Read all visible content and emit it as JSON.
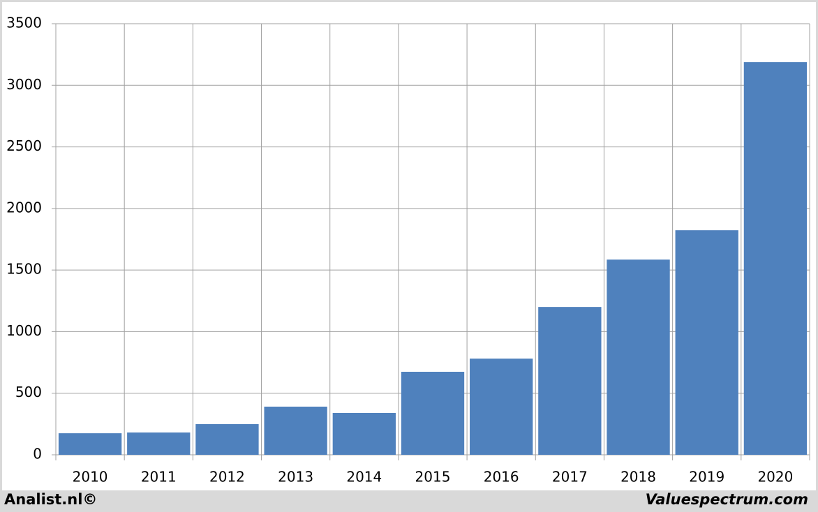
{
  "chart_data": {
    "type": "bar",
    "categories": [
      "2010",
      "2011",
      "2012",
      "2013",
      "2014",
      "2015",
      "2016",
      "2017",
      "2018",
      "2019",
      "2020"
    ],
    "values": [
      175,
      181,
      249,
      391,
      340,
      674,
      781,
      1200,
      1585,
      1823,
      3188
    ],
    "color": "#4f81bd",
    "ylim": [
      0,
      3500
    ],
    "yticks": [
      0,
      500,
      1000,
      1500,
      2000,
      2500,
      3000,
      3500
    ],
    "grid": true
  },
  "footer": {
    "left": "Analist.nl©",
    "right": "Valuespectrum.com"
  }
}
